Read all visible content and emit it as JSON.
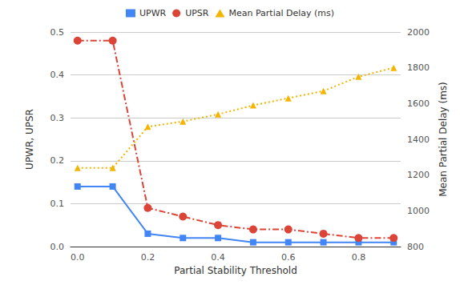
{
  "chart_data": {
    "type": "line",
    "x_label": "Partial Stability Threshold",
    "y_label": "UPWR, UPSR",
    "y2_label": "Mean Partial Delay (ms)",
    "x": [
      0.0,
      0.1,
      0.2,
      0.3,
      0.4,
      0.5,
      0.6,
      0.7,
      0.8,
      0.9
    ],
    "xlim": [
      -0.02,
      0.92
    ],
    "xticks": [
      {
        "value": 0,
        "label": "0.0"
      },
      0.2,
      0.4,
      0.6,
      0.8
    ],
    "ylim": [
      0,
      0.5
    ],
    "yticks": [
      {
        "value": 0,
        "label": "0.0"
      },
      0.1,
      0.2,
      0.3,
      0.4,
      0.5
    ],
    "y2lim": [
      800,
      2000
    ],
    "y2ticks": [
      800,
      1000,
      1200,
      1400,
      1600,
      1800,
      2000
    ],
    "grid": true,
    "legend": "top",
    "series": [
      {
        "name": "UPWR",
        "color": "#4285f4",
        "marker": "square",
        "line_style": "solid",
        "values": [
          0.14,
          0.14,
          0.03,
          0.02,
          0.02,
          0.01,
          0.01,
          0.01,
          0.01,
          0.01
        ]
      },
      {
        "name": "UPSR",
        "color": "#db4437",
        "marker": "circle",
        "line_style": "dashdot",
        "values": [
          0.48,
          0.48,
          0.09,
          0.07,
          0.05,
          0.04,
          0.04,
          0.03,
          0.02,
          0.02
        ]
      },
      {
        "name": "Mean Partial Delay (ms)",
        "color": "#f4b400",
        "marker": "triangle",
        "line_style": "dotted",
        "axis": "y2",
        "values": [
          1240,
          1240,
          1470,
          1500,
          1540,
          1590,
          1630,
          1670,
          1750,
          1800
        ]
      }
    ]
  }
}
